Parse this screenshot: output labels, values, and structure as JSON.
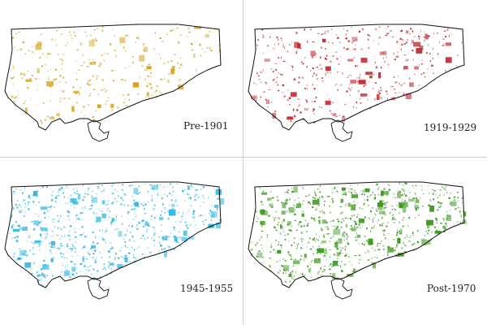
{
  "panels": [
    {
      "id": "pre1901",
      "label": "Pre-1901",
      "color": "#d4a21a",
      "density": 0.35,
      "seed": 11
    },
    {
      "id": "1919",
      "label": "1919-1929",
      "color": "#c0282d",
      "density": 0.45,
      "seed": 23
    },
    {
      "id": "1945",
      "label": "1945-1955",
      "color": "#2bb6e3",
      "density": 0.8,
      "seed": 37
    },
    {
      "id": "post1970",
      "label": "Post-1970",
      "color": "#3d9a1e",
      "density": 0.9,
      "seed": 51
    }
  ]
}
